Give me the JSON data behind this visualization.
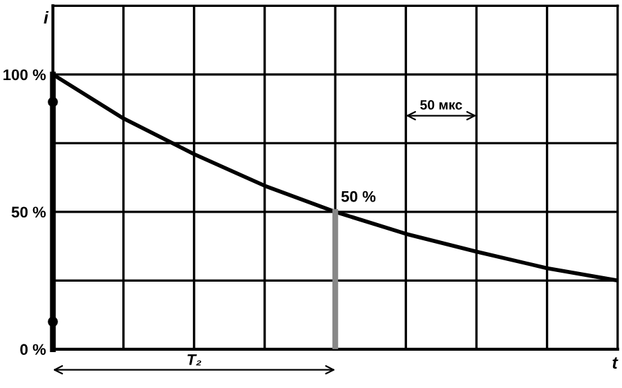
{
  "chart_data": {
    "type": "line",
    "xlabel": "t",
    "ylabel": "i",
    "categories": [
      null,
      null,
      null,
      null,
      null,
      null,
      null,
      null,
      null
    ],
    "series": [
      {
        "color": "#000000",
        "values": [
          100,
          84,
          71,
          59.5,
          50,
          42,
          35.5,
          29.5,
          25
        ]
      }
    ],
    "ylim": [
      0,
      125
    ],
    "yticks": [
      {
        "value": 0,
        "label": "0 %"
      },
      {
        "value": 25,
        "label": null
      },
      {
        "value": 50,
        "label": "50 %"
      },
      {
        "value": 75,
        "label": null
      },
      {
        "value": 100,
        "label": "100 %"
      },
      {
        "value": 125,
        "label": null
      }
    ],
    "grid": true,
    "annotations": [
      "50 %",
      "50 мкс",
      "T₂"
    ]
  }
}
